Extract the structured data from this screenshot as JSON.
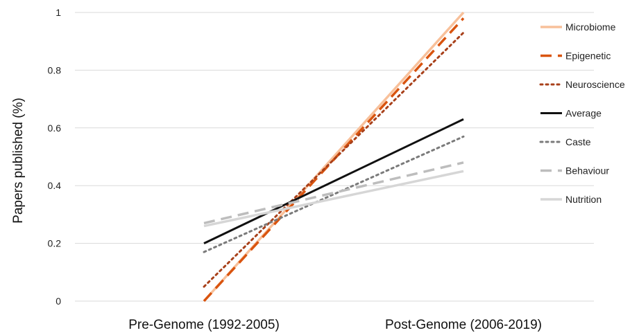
{
  "chart_data": {
    "type": "line",
    "categories": [
      "Pre-Genome (1992-2005)",
      "Post-Genome (2006-2019)"
    ],
    "ylabel": "Papers published (%)",
    "xlabel": "",
    "ylim": [
      0,
      1
    ],
    "yticks": [
      "0",
      "0.2",
      "0.4",
      "0.6",
      "0.8",
      "1"
    ],
    "grid": true,
    "legend_position": "right",
    "series": [
      {
        "name": "Microbiome",
        "values": [
          0.0,
          1.0
        ],
        "color": "#F8C09A",
        "style": "solid",
        "width": 3.5
      },
      {
        "name": "Epigenetic",
        "values": [
          0.0,
          0.98
        ],
        "color": "#D9540F",
        "style": "dashed",
        "width": 3.5
      },
      {
        "name": "Neuroscience",
        "values": [
          0.05,
          0.93
        ],
        "color": "#A8401A",
        "style": "dotted",
        "width": 3
      },
      {
        "name": "Average",
        "values": [
          0.2,
          0.63
        ],
        "color": "#111111",
        "style": "solid",
        "width": 3
      },
      {
        "name": "Caste",
        "values": [
          0.17,
          0.57
        ],
        "color": "#7A7A7A",
        "style": "dotted",
        "width": 3
      },
      {
        "name": "Behaviour",
        "values": [
          0.27,
          0.48
        ],
        "color": "#BDBDBD",
        "style": "dashed",
        "width": 3.5
      },
      {
        "name": "Nutrition",
        "values": [
          0.26,
          0.45
        ],
        "color": "#D6D6D6",
        "style": "solid",
        "width": 3.5
      }
    ]
  }
}
